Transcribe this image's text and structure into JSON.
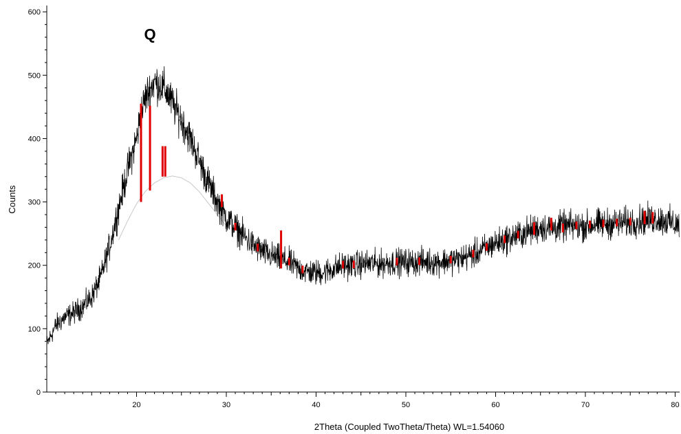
{
  "chart_data": {
    "type": "line",
    "title": "",
    "xlabel": "2Theta (Coupled TwoTheta/Theta) WL=1.54060",
    "ylabel": "Counts",
    "xlim": [
      10,
      80.5
    ],
    "ylim": [
      0,
      610
    ],
    "x_ticks": [
      20,
      30,
      40,
      50,
      60,
      70,
      80
    ],
    "y_ticks": [
      0,
      100,
      200,
      300,
      400,
      500,
      600
    ],
    "grid": false,
    "legend": "none",
    "colors": {
      "measured": "#000000",
      "background": "#c8c8c8",
      "highlight": "#e00000"
    },
    "series": [
      {
        "role": "measured",
        "x": [
          10,
          11,
          12,
          13,
          14,
          15,
          16,
          17,
          18,
          19,
          20,
          20.5,
          21,
          21.5,
          22,
          22.5,
          23,
          23.5,
          24,
          25,
          26,
          27,
          28,
          29,
          30,
          31,
          32,
          33,
          34,
          35,
          36,
          37,
          38,
          39,
          40,
          41,
          42,
          43,
          44,
          45,
          46,
          47,
          48,
          49,
          50,
          51,
          52,
          53,
          54,
          55,
          56,
          57,
          58,
          59,
          60,
          61,
          62,
          63,
          64,
          65,
          66,
          67,
          68,
          69,
          70,
          71,
          72,
          73,
          74,
          75,
          76,
          77,
          78,
          79,
          80,
          80.5
        ],
        "y": [
          75,
          105,
          118,
          125,
          135,
          150,
          180,
          230,
          290,
          350,
          400,
          440,
          465,
          478,
          490,
          485,
          480,
          470,
          455,
          430,
          400,
          365,
          330,
          300,
          275,
          260,
          245,
          232,
          222,
          215,
          210,
          205,
          195,
          190,
          188,
          190,
          195,
          200,
          200,
          202,
          203,
          202,
          204,
          205,
          205,
          205,
          206,
          205,
          206,
          208,
          210,
          215,
          220,
          228,
          235,
          240,
          245,
          250,
          255,
          260,
          258,
          260,
          262,
          262,
          262,
          265,
          265,
          266,
          267,
          268,
          270,
          272,
          273,
          270,
          265,
          262
        ]
      },
      {
        "role": "background",
        "x": [
          18,
          19,
          20,
          21,
          22,
          23,
          24,
          25,
          26,
          27,
          28,
          29,
          30
        ],
        "y": [
          240,
          270,
          297,
          317,
          330,
          338,
          341,
          338,
          330,
          316,
          298,
          280,
          262
        ]
      }
    ],
    "annotations": [
      {
        "text": "Q",
        "x": 21.5,
        "y": 565
      }
    ],
    "reference_sticks": [
      {
        "x": 20.5,
        "y0": 300,
        "y1": 455
      },
      {
        "x": 21.5,
        "y0": 318,
        "y1": 452
      },
      {
        "x": 22.9,
        "y0": 340,
        "y1": 388
      },
      {
        "x": 23.2,
        "y0": 340,
        "y1": 388
      },
      {
        "x": 29.5,
        "y0": 292,
        "y1": 312
      },
      {
        "x": 36.1,
        "y0": 195,
        "y1": 255
      },
      {
        "x": 64.3,
        "y0": 248,
        "y1": 268
      },
      {
        "x": 66.2,
        "y0": 255,
        "y1": 275
      },
      {
        "x": 67.5,
        "y0": 252,
        "y1": 266
      },
      {
        "x": 76.6,
        "y0": 265,
        "y1": 286
      },
      {
        "x": 77.5,
        "y0": 266,
        "y1": 284
      }
    ]
  }
}
